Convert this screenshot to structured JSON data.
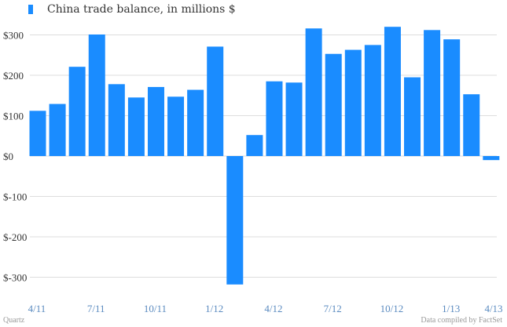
{
  "chart_data": {
    "type": "bar",
    "title": "",
    "legend": [
      {
        "label": "China trade balance, in millions $",
        "color": "#1a8cff"
      }
    ],
    "series": [
      {
        "name": "China trade balance, in millions $",
        "color": "#1a8cff",
        "values": [
          112,
          129,
          221,
          301,
          178,
          145,
          171,
          147,
          164,
          271,
          -318,
          52,
          185,
          182,
          316,
          253,
          263,
          275,
          320,
          195,
          312,
          289,
          153,
          -10
        ]
      }
    ],
    "x_tick_labels": [
      "4/11",
      "7/11",
      "10/11",
      "1/12",
      "4/12",
      "7/12",
      "10/12",
      "1/13",
      "4/13"
    ],
    "y_ticks": [
      300,
      200,
      100,
      0,
      -100,
      -200,
      -300
    ],
    "y_tick_labels": [
      "$300",
      "$200",
      "$100",
      "$0",
      "$-100",
      "$-200",
      "$-300"
    ],
    "ylim": [
      -340,
      340
    ],
    "xlabel": "",
    "ylabel": "",
    "grid": true
  },
  "footer": {
    "source_left": "Quartz",
    "source_right": "Data compiled by FactSet"
  }
}
